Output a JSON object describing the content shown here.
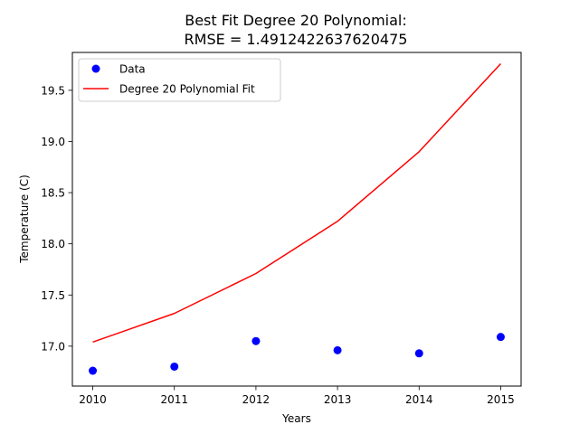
{
  "chart_data": {
    "type": "scatter",
    "title_line1": "Best Fit Degree 20 Polynomial:",
    "title_line2": "RMSE = 1.4912422637620475",
    "xlabel": "Years",
    "ylabel": "Temperature (C)",
    "xlim": [
      2009.75,
      2015.25
    ],
    "ylim": [
      16.61,
      19.87
    ],
    "x_ticks": [
      2010,
      2011,
      2012,
      2013,
      2014,
      2015
    ],
    "y_ticks": [
      17.0,
      17.5,
      18.0,
      18.5,
      19.0,
      19.5
    ],
    "x_tick_labels": [
      "2010",
      "2011",
      "2012",
      "2013",
      "2014",
      "2015"
    ],
    "y_tick_labels": [
      "17.0",
      "17.5",
      "18.0",
      "18.5",
      "19.0",
      "19.5"
    ],
    "legend_position": "top-left",
    "grid": false,
    "series": [
      {
        "name": "Data",
        "kind": "points",
        "color": "#0000ff",
        "x": [
          2010,
          2011,
          2012,
          2013,
          2014,
          2015
        ],
        "y": [
          16.76,
          16.8,
          17.05,
          16.96,
          16.93,
          17.09
        ]
      },
      {
        "name": "Degree 20 Polynomial Fit",
        "kind": "line",
        "color": "#ff0000",
        "x": [
          2010,
          2011,
          2012,
          2013,
          2014,
          2015
        ],
        "y": [
          17.04,
          17.32,
          17.71,
          18.22,
          18.9,
          19.76
        ]
      }
    ]
  }
}
